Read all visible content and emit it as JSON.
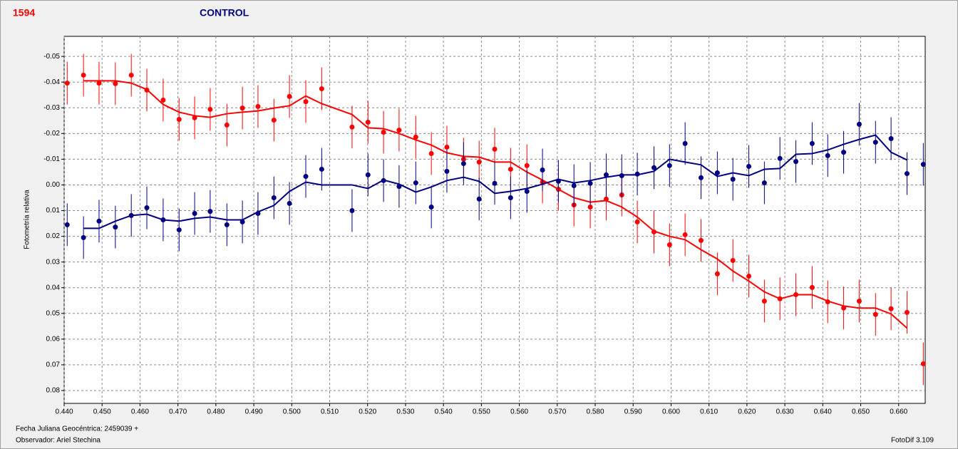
{
  "chart_data": {
    "type": "scatter",
    "title_left": "1594",
    "title_right": "CONTROL",
    "ylabel": "Fotometría relativa",
    "footer_left_1": "Fecha Juliana Geocéntrica: 2459039 +",
    "footer_left_2": "Observador: Ariel Stechina",
    "footer_right": "FotoDif 3.109",
    "x": [
      0.4408,
      0.4451,
      0.4492,
      0.4535,
      0.4577,
      0.4618,
      0.4661,
      0.4703,
      0.4744,
      0.4785,
      0.4829,
      0.487,
      0.4911,
      0.4953,
      0.4994,
      0.5037,
      0.5079,
      0.5159,
      0.5201,
      0.5242,
      0.5283,
      0.5327,
      0.5368,
      0.5409,
      0.5453,
      0.5494,
      0.5535,
      0.5577,
      0.562,
      0.5661,
      0.5703,
      0.5744,
      0.5787,
      0.5829,
      0.587,
      0.5911,
      0.5955,
      0.5996,
      0.6037,
      0.6079,
      0.6122,
      0.6163,
      0.6205,
      0.6246,
      0.6287,
      0.6329,
      0.6372,
      0.6413,
      0.6455,
      0.6496,
      0.6539,
      0.658,
      0.6622,
      0.6665
    ],
    "series": [
      {
        "name": "1594",
        "color": "#ff0000",
        "error": 0.0083,
        "values": [
          -0.0396,
          -0.0427,
          -0.0396,
          -0.0394,
          -0.0427,
          -0.0369,
          -0.033,
          -0.0255,
          -0.0261,
          -0.0294,
          -0.0233,
          -0.0299,
          -0.0305,
          -0.0252,
          -0.0344,
          -0.0324,
          -0.0374,
          -0.0225,
          -0.0244,
          -0.0205,
          -0.0213,
          -0.0186,
          -0.0122,
          -0.0147,
          -0.01,
          -0.0089,
          -0.0139,
          -0.0061,
          -0.0075,
          -0.0011,
          0.0017,
          0.0078,
          0.0086,
          0.0055,
          0.0039,
          0.0144,
          0.0183,
          0.0233,
          0.0194,
          0.0216,
          0.0346,
          0.0294,
          0.0355,
          0.0452,
          0.0443,
          0.0427,
          0.0399,
          0.0455,
          0.0479,
          0.0452,
          0.0504,
          0.0482,
          0.0496,
          0.0696
        ],
        "smoothed": [
          null,
          -0.0405,
          -0.0405,
          -0.0405,
          -0.0396,
          -0.0371,
          -0.0313,
          -0.0283,
          -0.0269,
          -0.0263,
          -0.0277,
          -0.0283,
          -0.0288,
          -0.0299,
          -0.0308,
          -0.0346,
          -0.0316,
          -0.0274,
          -0.0222,
          -0.0219,
          -0.02,
          -0.0175,
          -0.0155,
          -0.0125,
          -0.0111,
          -0.0108,
          -0.0089,
          -0.0089,
          -0.005,
          -0.0019,
          0.0017,
          0.005,
          0.0067,
          0.0061,
          0.0086,
          0.0125,
          0.018,
          0.02,
          0.0213,
          0.0252,
          0.0288,
          0.0335,
          0.0374,
          0.0416,
          0.0443,
          0.0427,
          0.0427,
          0.0452,
          0.0471,
          0.0479,
          0.0479,
          0.0502,
          0.0557,
          null
        ]
      },
      {
        "name": "CONTROL",
        "color": "#000080",
        "error": 0.0083,
        "values": [
          0.0155,
          0.0205,
          0.0141,
          0.0164,
          0.0119,
          0.0089,
          0.0136,
          0.0175,
          0.0111,
          0.0103,
          0.0155,
          0.0144,
          0.0111,
          0.005,
          0.0072,
          -0.0033,
          -0.0061,
          0.01,
          -0.0039,
          -0.0017,
          0.0006,
          -0.0008,
          0.0086,
          -0.0053,
          -0.0083,
          0.0055,
          -0.0006,
          0.005,
          0.0025,
          -0.0058,
          -0.0014,
          0.0003,
          -0.0006,
          -0.0039,
          -0.0036,
          -0.0042,
          -0.0067,
          -0.0075,
          -0.0161,
          -0.0028,
          -0.0047,
          -0.0022,
          -0.0072,
          -0.0008,
          -0.0103,
          -0.0091,
          -0.0161,
          -0.0114,
          -0.0127,
          -0.0236,
          -0.0166,
          -0.018,
          -0.0044,
          -0.008
        ],
        "smoothed": [
          null,
          0.0169,
          0.0169,
          0.0141,
          0.0119,
          0.0114,
          0.0136,
          0.0141,
          0.013,
          0.0125,
          0.0136,
          0.0136,
          0.0105,
          0.008,
          0.0025,
          -0.0011,
          0,
          0,
          0.0014,
          -0.0019,
          -0.0003,
          0.0028,
          0.0008,
          -0.0017,
          -0.003,
          -0.0014,
          0.0033,
          0.0025,
          0.0014,
          -0.0003,
          -0.0022,
          -0.0008,
          -0.0017,
          -0.003,
          -0.0039,
          -0.0039,
          -0.0053,
          -0.01,
          -0.0089,
          -0.0078,
          -0.0033,
          -0.0047,
          -0.0036,
          -0.0061,
          -0.0064,
          -0.0119,
          -0.0122,
          -0.0136,
          -0.0158,
          -0.0177,
          -0.0194,
          -0.0127,
          -0.0097,
          null
        ]
      }
    ],
    "xlim": [
      0.44,
      0.667
    ],
    "ylim": [
      -0.0578,
      0.085
    ],
    "y_inverted": true,
    "grid": true,
    "xticks": [
      {
        "value": 0.44,
        "label": "0.440"
      },
      {
        "value": 0.45,
        "label": "0.450"
      },
      {
        "value": 0.46,
        "label": "0.460"
      },
      {
        "value": 0.47,
        "label": "0.470"
      },
      {
        "value": 0.48,
        "label": "0.480"
      },
      {
        "value": 0.49,
        "label": "0.490"
      },
      {
        "value": 0.5,
        "label": "0.500"
      },
      {
        "value": 0.51,
        "label": "0.510"
      },
      {
        "value": 0.52,
        "label": "0.520"
      },
      {
        "value": 0.53,
        "label": "0.530"
      },
      {
        "value": 0.54,
        "label": "0.540"
      },
      {
        "value": 0.55,
        "label": "0.550"
      },
      {
        "value": 0.56,
        "label": "0.560"
      },
      {
        "value": 0.57,
        "label": "0.570"
      },
      {
        "value": 0.58,
        "label": "0.580"
      },
      {
        "value": 0.59,
        "label": "0.590"
      },
      {
        "value": 0.6,
        "label": "0.600"
      },
      {
        "value": 0.61,
        "label": "0.610"
      },
      {
        "value": 0.62,
        "label": "0.620"
      },
      {
        "value": 0.63,
        "label": "0.630"
      },
      {
        "value": 0.64,
        "label": "0.640"
      },
      {
        "value": 0.65,
        "label": "0.650"
      },
      {
        "value": 0.66,
        "label": "0.660"
      }
    ],
    "yticks": [
      -0.05,
      -0.04,
      -0.03,
      -0.02,
      -0.01,
      {
        "value": 0,
        "label": "0.00"
      },
      0.01,
      0.02,
      0.03,
      0.04,
      0.05,
      0.06,
      0.07,
      0.08
    ]
  }
}
